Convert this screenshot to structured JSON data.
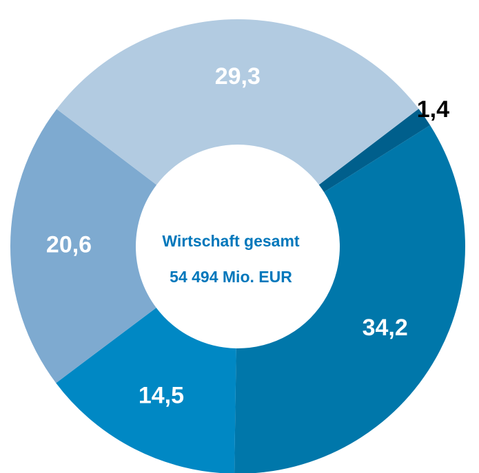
{
  "chart_data": {
    "type": "donut",
    "center_text": [
      "Wirtschaft gesamt",
      "54 494 Mio. EUR"
    ],
    "values": [
      1.4,
      34.2,
      14.5,
      20.6,
      29.3
    ],
    "value_labels": [
      "1,4",
      "34,2",
      "14,5",
      "20,6",
      "29,3"
    ],
    "colors": [
      "#005f8c",
      "#0077aa",
      "#0088c4",
      "#7eaad0",
      "#b2cbe1"
    ]
  }
}
